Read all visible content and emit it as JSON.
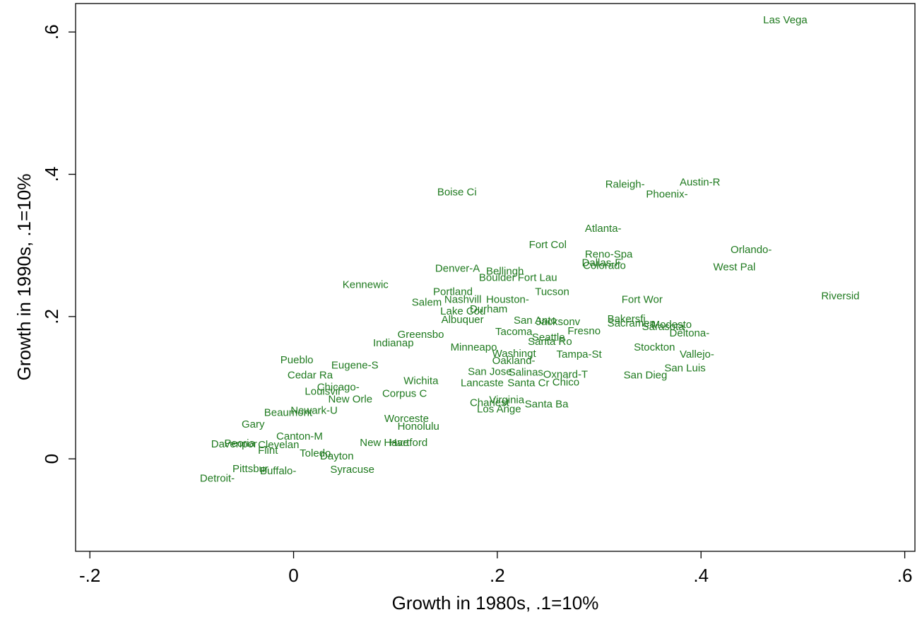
{
  "chart_data": {
    "type": "scatter",
    "x_label": "Growth in 1980s, .1=10%",
    "y_label": "Growth in 1990s, .1=10%",
    "color": "#1f7a1f",
    "xlim": [
      -0.214,
      0.61
    ],
    "ylim": [
      -0.13,
      0.64
    ],
    "xticks": [
      {
        "value": -0.2,
        "label": "-.2"
      },
      0,
      {
        "value": 0.2,
        "label": ".2"
      },
      {
        "value": 0.4,
        "label": ".4"
      },
      {
        "value": 0.6,
        "label": ".6"
      }
    ],
    "yticks": [
      0,
      {
        "value": 0.2,
        "label": ".2"
      },
      {
        "value": 0.4,
        "label": ".4"
      },
      {
        "value": 0.6,
        "label": ".6"
      }
    ],
    "labels": [
      "Las Vega",
      "Raleigh-",
      "Austin-R",
      "Phoenix-",
      "Boise Ci",
      "Atlanta-",
      "Fort Col",
      "Reno-Spa",
      "Orlando-",
      "Dallas-F",
      "Colorado",
      "West Pal",
      "Denver-A",
      "Bellingh",
      "Boulder",
      "Fort Lau",
      "Kennewic",
      "Tucson",
      "Portland",
      "Riversid",
      "Salem",
      "Nashvill",
      "Houston-",
      "Fort Wor",
      "Durham",
      "Lake Cou",
      "Albuquer",
      "San Anto",
      "Jacksonv",
      "Bakersfi",
      "Sacramen",
      "Modesto",
      "Sarasota",
      "Deltona-",
      "Greensbo",
      "Tacoma",
      "Fresno",
      "Seattle",
      "Santa Ro",
      "Indianap",
      "Minneapo",
      "Stockton",
      "Washingt",
      "Tampa-St",
      "Vallejo-",
      "Oakland-",
      "Pueblo",
      "Eugene-S",
      "San Luis",
      "San Jose",
      "Salinas",
      "Cedar Ra",
      "Oxnard-T",
      "San Dieg",
      "Wichita",
      "Chico",
      "Lancaste",
      "Santa Cr",
      "Chicago-",
      "Louisvil",
      "Corpus C",
      "New Orle",
      "Virginia",
      "Charlest",
      "Santa Ba",
      "Los Ange",
      "Beaumont",
      "Newark-U",
      "Worceste",
      "Gary",
      "Honolulu",
      "New Have",
      "Hartford",
      "Canton-M",
      "Peoria",
      "Clevelan",
      "Davenpor",
      "Flint",
      "Toledo",
      "Dayton",
      "Pittsbur",
      "Buffalo-",
      "Syracuse",
      "Detroit-"
    ],
    "x": [
      0.461,
      0.306,
      0.379,
      0.346,
      0.141,
      0.286,
      0.231,
      0.286,
      0.429,
      0.283,
      0.284,
      0.412,
      0.139,
      0.189,
      0.182,
      0.22,
      0.048,
      0.237,
      0.137,
      0.518,
      0.116,
      0.148,
      0.189,
      0.322,
      0.173,
      0.144,
      0.145,
      0.216,
      0.238,
      0.308,
      0.308,
      0.351,
      0.342,
      0.369,
      0.102,
      0.198,
      0.269,
      0.234,
      0.23,
      0.078,
      0.154,
      0.334,
      0.195,
      0.258,
      0.379,
      0.195,
      -0.013,
      0.037,
      0.364,
      0.171,
      0.211,
      -0.006,
      0.245,
      0.324,
      0.108,
      0.254,
      0.164,
      0.21,
      0.023,
      0.011,
      0.087,
      0.034,
      0.192,
      0.173,
      0.227,
      0.18,
      -0.029,
      -0.003,
      0.089,
      -0.051,
      0.102,
      0.065,
      0.094,
      -0.017,
      -0.068,
      -0.035,
      -0.081,
      -0.035,
      0.006,
      0.026,
      -0.06,
      -0.033,
      0.036,
      -0.092
    ],
    "values": [
      0.616,
      0.385,
      0.388,
      0.371,
      0.374,
      0.323,
      0.3,
      0.287,
      0.293,
      0.275,
      0.271,
      0.269,
      0.267,
      0.263,
      0.254,
      0.254,
      0.244,
      0.234,
      0.234,
      0.228,
      0.219,
      0.223,
      0.223,
      0.223,
      0.21,
      0.207,
      0.195,
      0.194,
      0.192,
      0.196,
      0.19,
      0.188,
      0.185,
      0.176,
      0.174,
      0.178,
      0.179,
      0.17,
      0.164,
      0.162,
      0.156,
      0.156,
      0.147,
      0.146,
      0.146,
      0.137,
      0.138,
      0.131,
      0.127,
      0.122,
      0.121,
      0.117,
      0.118,
      0.117,
      0.109,
      0.107,
      0.106,
      0.106,
      0.1,
      0.094,
      0.091,
      0.083,
      0.082,
      0.078,
      0.076,
      0.069,
      0.064,
      0.067,
      0.056,
      0.048,
      0.045,
      0.022,
      0.022,
      0.031,
      0.021,
      0.019,
      0.02,
      0.011,
      0.007,
      0.003,
      -0.015,
      -0.018,
      -0.016,
      -0.028
    ]
  }
}
